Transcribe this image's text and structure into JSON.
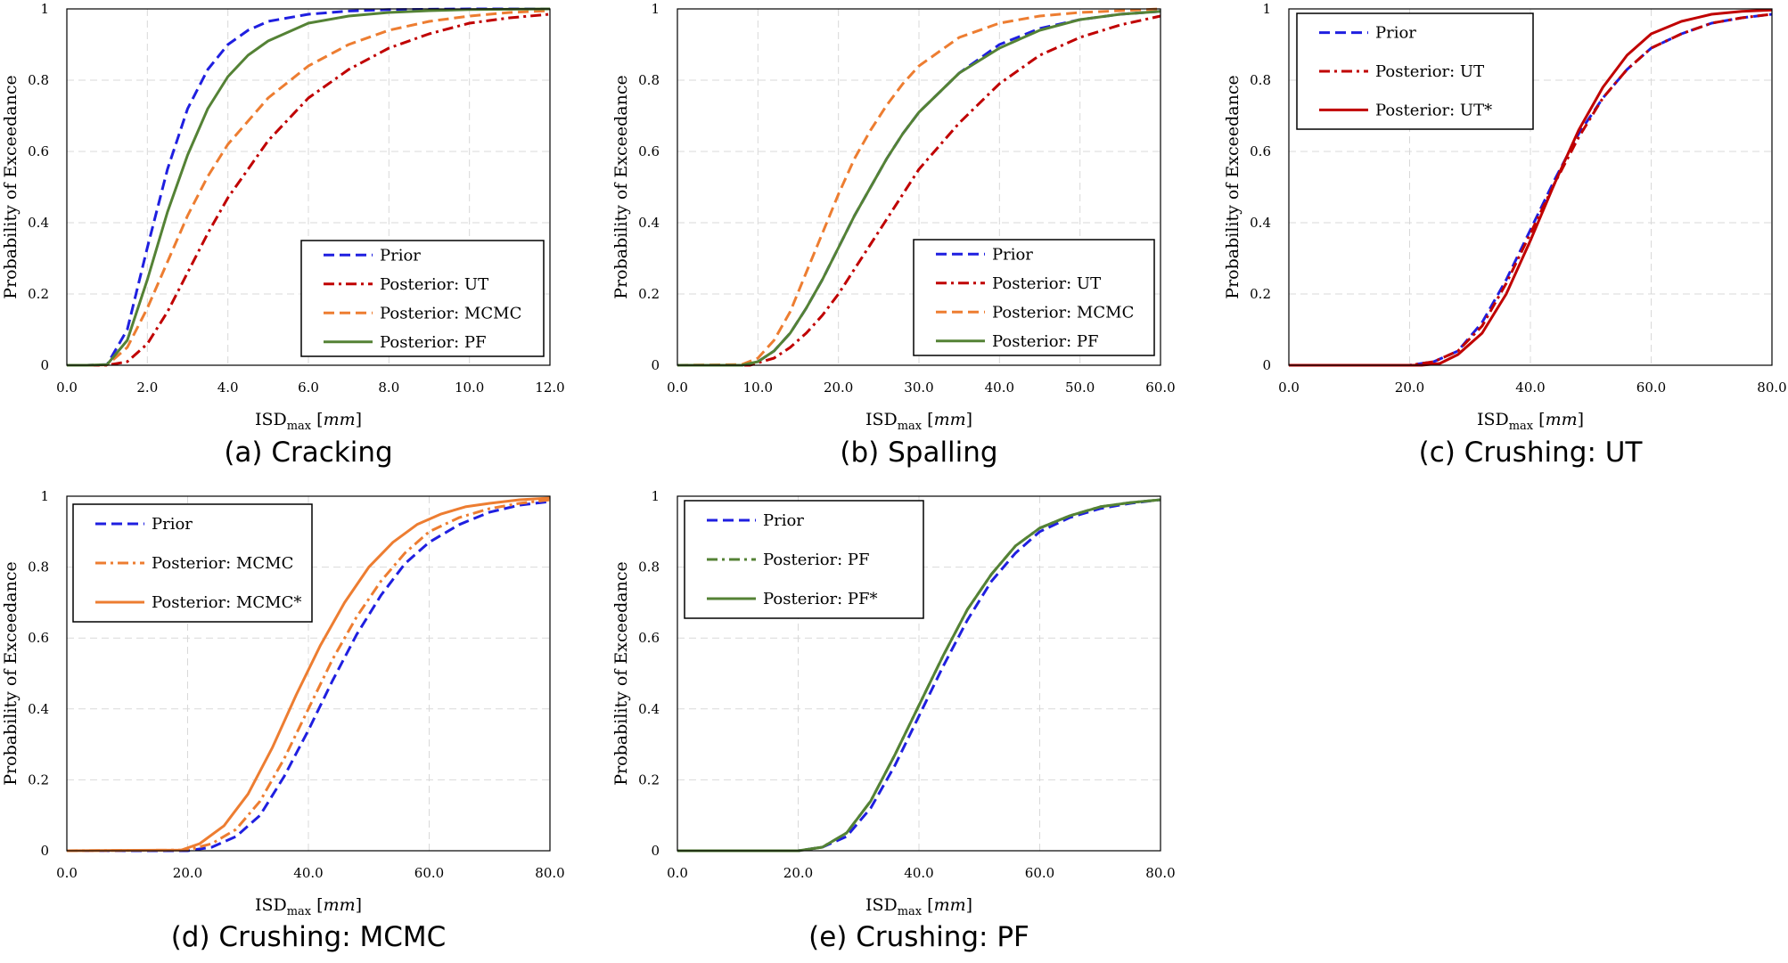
{
  "colors": {
    "prior": "#1f1fe0",
    "ut": "#c00000",
    "mcmc": "#ed7d31",
    "pf": "#548235",
    "grid": "#d9d9d9",
    "frame": "#000000"
  },
  "chart_data": [
    {
      "type": "line",
      "caption": "(a) Cracking",
      "ylabel": "Probability of Exceedance",
      "xlabel_main": "ISD",
      "xlabel_sub": "max",
      "xlabel_unit": "mm",
      "xlim": [
        0,
        12
      ],
      "ylim": [
        0,
        1
      ],
      "xticks": [
        "0.0",
        "2.0",
        "4.0",
        "6.0",
        "8.0",
        "10.0",
        "12.0"
      ],
      "yticks": [
        "0",
        "0.2",
        "0.4",
        "0.6",
        "0.8",
        "1"
      ],
      "grid": true,
      "legend_position": "bottom-right",
      "series": [
        {
          "name": "Prior",
          "style": "dashed",
          "color_key": "prior",
          "x": [
            0,
            0.5,
            1.0,
            1.5,
            2.0,
            2.5,
            3.0,
            3.5,
            4.0,
            4.5,
            5.0,
            6.0,
            7.0,
            8.0,
            9.0,
            10.0,
            12.0
          ],
          "y": [
            0,
            0,
            0.002,
            0.1,
            0.33,
            0.55,
            0.72,
            0.83,
            0.9,
            0.94,
            0.965,
            0.985,
            0.994,
            0.998,
            0.999,
            1.0,
            1.0
          ]
        },
        {
          "name": "Posterior: UT",
          "style": "dashdot",
          "color_key": "ut",
          "x": [
            0,
            1.0,
            1.5,
            2.0,
            2.5,
            3.0,
            3.5,
            4.0,
            4.5,
            5.0,
            6.0,
            7.0,
            8.0,
            9.0,
            10.0,
            11.0,
            12.0
          ],
          "y": [
            0,
            0,
            0.01,
            0.06,
            0.15,
            0.26,
            0.37,
            0.47,
            0.55,
            0.63,
            0.75,
            0.83,
            0.89,
            0.93,
            0.96,
            0.975,
            0.985
          ]
        },
        {
          "name": "Posterior: MCMC",
          "style": "dashed",
          "color_key": "mcmc",
          "x": [
            0,
            0.5,
            1.0,
            1.5,
            2.0,
            2.5,
            3.0,
            3.5,
            4.0,
            5.0,
            6.0,
            7.0,
            8.0,
            9.0,
            10.0,
            11.0,
            12.0
          ],
          "y": [
            0,
            0,
            0.001,
            0.05,
            0.16,
            0.29,
            0.42,
            0.53,
            0.62,
            0.75,
            0.84,
            0.9,
            0.94,
            0.965,
            0.98,
            0.99,
            0.995
          ]
        },
        {
          "name": "Posterior: PF",
          "style": "solid",
          "color_key": "pf",
          "x": [
            0,
            0.5,
            1.0,
            1.5,
            2.0,
            2.5,
            3.0,
            3.5,
            4.0,
            4.5,
            5.0,
            6.0,
            7.0,
            8.0,
            9.0,
            10.0,
            12.0
          ],
          "y": [
            0,
            0,
            0.002,
            0.07,
            0.24,
            0.43,
            0.59,
            0.72,
            0.81,
            0.87,
            0.91,
            0.96,
            0.98,
            0.99,
            0.995,
            0.998,
            1.0
          ]
        }
      ]
    },
    {
      "type": "line",
      "caption": "(b) Spalling",
      "ylabel": "Probability of Exceedance",
      "xlabel_main": "ISD",
      "xlabel_sub": "max",
      "xlabel_unit": "mm",
      "xlim": [
        0,
        60
      ],
      "ylim": [
        0,
        1
      ],
      "xticks": [
        "0.0",
        "10.0",
        "20.0",
        "30.0",
        "40.0",
        "50.0",
        "60.0"
      ],
      "yticks": [
        "0",
        "0.2",
        "0.4",
        "0.6",
        "0.8",
        "1"
      ],
      "grid": true,
      "legend_position": "bottom-right",
      "series": [
        {
          "name": "Prior",
          "style": "dashed",
          "color_key": "prior",
          "x": [
            0,
            8,
            10,
            12,
            14,
            16,
            18,
            20,
            22,
            24,
            26,
            28,
            30,
            35,
            40,
            45,
            50,
            55,
            60
          ],
          "y": [
            0,
            0,
            0.01,
            0.04,
            0.09,
            0.16,
            0.24,
            0.33,
            0.42,
            0.5,
            0.58,
            0.65,
            0.71,
            0.82,
            0.9,
            0.945,
            0.97,
            0.985,
            0.993
          ]
        },
        {
          "name": "Posterior: UT",
          "style": "dashdot",
          "color_key": "ut",
          "x": [
            0,
            9,
            12,
            14,
            16,
            18,
            20,
            22,
            24,
            26,
            28,
            30,
            35,
            40,
            45,
            50,
            55,
            60
          ],
          "y": [
            0,
            0,
            0.02,
            0.05,
            0.09,
            0.14,
            0.2,
            0.27,
            0.34,
            0.41,
            0.48,
            0.55,
            0.68,
            0.79,
            0.87,
            0.92,
            0.955,
            0.98
          ]
        },
        {
          "name": "Posterior: MCMC",
          "style": "dashed",
          "color_key": "mcmc",
          "x": [
            0,
            8,
            10,
            12,
            14,
            16,
            18,
            20,
            22,
            24,
            26,
            28,
            30,
            35,
            40,
            45,
            50,
            55,
            60
          ],
          "y": [
            0,
            0.002,
            0.02,
            0.07,
            0.15,
            0.26,
            0.37,
            0.48,
            0.58,
            0.66,
            0.73,
            0.79,
            0.84,
            0.92,
            0.96,
            0.98,
            0.99,
            0.995,
            1.0
          ]
        },
        {
          "name": "Posterior: PF",
          "style": "solid",
          "color_key": "pf",
          "x": [
            0,
            8,
            10,
            12,
            14,
            16,
            18,
            20,
            22,
            24,
            26,
            28,
            30,
            35,
            40,
            45,
            50,
            55,
            60
          ],
          "y": [
            0,
            0,
            0.01,
            0.04,
            0.09,
            0.16,
            0.24,
            0.33,
            0.42,
            0.5,
            0.58,
            0.65,
            0.71,
            0.82,
            0.89,
            0.94,
            0.97,
            0.985,
            0.993
          ]
        }
      ]
    },
    {
      "type": "line",
      "caption": "(c) Crushing: UT",
      "ylabel": "Probability of Exceedance",
      "xlabel_main": "ISD",
      "xlabel_sub": "max",
      "xlabel_unit": "mm",
      "xlim": [
        0,
        80
      ],
      "ylim": [
        0,
        1
      ],
      "xticks": [
        "0.0",
        "20.0",
        "40.0",
        "60.0",
        "80.0"
      ],
      "yticks": [
        "0",
        "0.2",
        "0.4",
        "0.6",
        "0.8",
        "1"
      ],
      "grid": true,
      "legend_position": "top-left",
      "series": [
        {
          "name": "Prior",
          "style": "dashed",
          "color_key": "prior",
          "x": [
            0,
            20,
            24,
            28,
            32,
            36,
            40,
            44,
            48,
            52,
            56,
            60,
            65,
            70,
            75,
            80
          ],
          "y": [
            0,
            0,
            0.01,
            0.04,
            0.12,
            0.24,
            0.38,
            0.52,
            0.65,
            0.75,
            0.83,
            0.89,
            0.93,
            0.96,
            0.975,
            0.985
          ]
        },
        {
          "name": "Posterior: UT",
          "style": "dashdot",
          "color_key": "ut",
          "x": [
            0,
            20,
            24,
            28,
            32,
            36,
            40,
            44,
            48,
            52,
            56,
            60,
            65,
            70,
            75,
            80
          ],
          "y": [
            0,
            0,
            0.01,
            0.04,
            0.11,
            0.23,
            0.37,
            0.51,
            0.64,
            0.75,
            0.83,
            0.89,
            0.93,
            0.96,
            0.975,
            0.985
          ]
        },
        {
          "name": "Posterior: UT*",
          "style": "solid",
          "color_key": "ut",
          "x": [
            0,
            22,
            25,
            28,
            32,
            36,
            40,
            44,
            48,
            52,
            56,
            60,
            65,
            70,
            75,
            80
          ],
          "y": [
            0,
            0,
            0.005,
            0.03,
            0.09,
            0.2,
            0.35,
            0.51,
            0.66,
            0.78,
            0.87,
            0.93,
            0.965,
            0.985,
            0.993,
            0.997
          ]
        }
      ]
    },
    {
      "type": "line",
      "caption": "(d) Crushing: MCMC",
      "ylabel": "Probability of Exceedance",
      "xlabel_main": "ISD",
      "xlabel_sub": "max",
      "xlabel_unit": "mm",
      "xlim": [
        0,
        80
      ],
      "ylim": [
        0,
        1
      ],
      "xticks": [
        "0.0",
        "20.0",
        "40.0",
        "60.0",
        "80.0"
      ],
      "yticks": [
        "0",
        "0.2",
        "0.4",
        "0.6",
        "0.8",
        "1"
      ],
      "grid": true,
      "legend_position": "top-left",
      "series": [
        {
          "name": "Prior",
          "style": "dashed",
          "color_key": "prior",
          "x": [
            0,
            20,
            24,
            28,
            32,
            36,
            40,
            44,
            48,
            52,
            56,
            60,
            65,
            70,
            75,
            80
          ],
          "y": [
            0,
            0,
            0.01,
            0.04,
            0.1,
            0.21,
            0.34,
            0.48,
            0.61,
            0.72,
            0.81,
            0.87,
            0.92,
            0.955,
            0.975,
            0.985
          ]
        },
        {
          "name": "Posterior: MCMC",
          "style": "dashdot",
          "color_key": "mcmc",
          "x": [
            0,
            20,
            24,
            28,
            32,
            36,
            40,
            44,
            48,
            52,
            56,
            60,
            65,
            70,
            75,
            80
          ],
          "y": [
            0,
            0.002,
            0.02,
            0.06,
            0.14,
            0.26,
            0.4,
            0.54,
            0.66,
            0.76,
            0.84,
            0.9,
            0.94,
            0.965,
            0.98,
            0.99
          ]
        },
        {
          "name": "Posterior: MCMC*",
          "style": "solid",
          "color_key": "mcmc",
          "x": [
            0,
            19,
            22,
            26,
            30,
            34,
            38,
            42,
            46,
            50,
            54,
            58,
            62,
            66,
            70,
            75,
            80
          ],
          "y": [
            0,
            0.002,
            0.02,
            0.07,
            0.16,
            0.29,
            0.44,
            0.58,
            0.7,
            0.8,
            0.87,
            0.92,
            0.95,
            0.97,
            0.98,
            0.99,
            0.995
          ]
        }
      ]
    },
    {
      "type": "line",
      "caption": "(e) Crushing: PF",
      "ylabel": "Probability of Exceedance",
      "xlabel_main": "ISD",
      "xlabel_sub": "max",
      "xlabel_unit": "mm",
      "xlim": [
        0,
        80
      ],
      "ylim": [
        0,
        1
      ],
      "xticks": [
        "0.0",
        "20.0",
        "40.0",
        "60.0",
        "80.0"
      ],
      "yticks": [
        "0",
        "0.2",
        "0.4",
        "0.6",
        "0.8",
        "1"
      ],
      "grid": true,
      "legend_position": "top-left",
      "series": [
        {
          "name": "Prior",
          "style": "dashed",
          "color_key": "prior",
          "x": [
            0,
            20,
            24,
            28,
            32,
            36,
            40,
            44,
            48,
            52,
            56,
            60,
            65,
            70,
            75,
            80
          ],
          "y": [
            0,
            0,
            0.01,
            0.04,
            0.12,
            0.24,
            0.38,
            0.52,
            0.65,
            0.76,
            0.84,
            0.9,
            0.94,
            0.965,
            0.98,
            0.99
          ]
        },
        {
          "name": "Posterior: PF",
          "style": "dashdot",
          "color_key": "pf",
          "x": [
            0,
            20,
            24,
            28,
            32,
            36,
            40,
            44,
            48,
            52,
            56,
            60,
            65,
            70,
            75,
            80
          ],
          "y": [
            0,
            0,
            0.01,
            0.05,
            0.14,
            0.27,
            0.41,
            0.55,
            0.68,
            0.78,
            0.86,
            0.91,
            0.945,
            0.97,
            0.982,
            0.99
          ]
        },
        {
          "name": "Posterior: PF*",
          "style": "solid",
          "color_key": "pf",
          "x": [
            0,
            20,
            24,
            28,
            32,
            36,
            40,
            44,
            48,
            52,
            56,
            60,
            65,
            70,
            75,
            80
          ],
          "y": [
            0,
            0,
            0.01,
            0.05,
            0.14,
            0.27,
            0.41,
            0.55,
            0.68,
            0.78,
            0.86,
            0.91,
            0.945,
            0.97,
            0.982,
            0.99
          ]
        }
      ]
    }
  ]
}
